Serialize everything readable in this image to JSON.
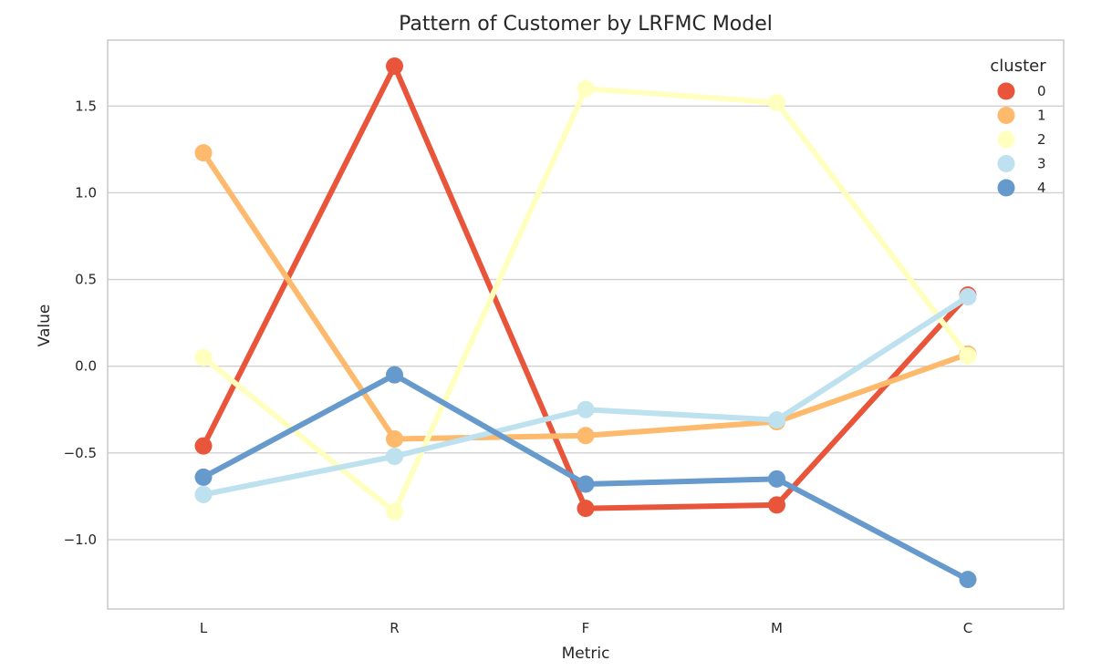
{
  "chart_data": {
    "type": "line",
    "title": "Pattern of Customer by LRFMC Model",
    "xlabel": "Metric",
    "ylabel": "Value",
    "categories": [
      "L",
      "R",
      "F",
      "M",
      "C"
    ],
    "ylim": [
      -1.4,
      1.88
    ],
    "yticks": [
      -1.0,
      -0.5,
      0.0,
      0.5,
      1.0,
      1.5
    ],
    "ytick_labels": [
      "−1.0",
      "−0.5",
      "0.0",
      "0.5",
      "1.0",
      "1.5"
    ],
    "grid": true,
    "legend": {
      "title": "cluster",
      "placement": "top-right"
    },
    "series": [
      {
        "name": "0",
        "color": "#e8553a",
        "values": [
          -0.46,
          1.73,
          -0.82,
          -0.8,
          0.41
        ]
      },
      {
        "name": "1",
        "color": "#fdb96c",
        "values": [
          1.23,
          -0.42,
          -0.4,
          -0.32,
          0.07
        ]
      },
      {
        "name": "2",
        "color": "#ffffbf",
        "values": [
          0.05,
          -0.84,
          1.6,
          1.52,
          0.06
        ]
      },
      {
        "name": "3",
        "color": "#bde1ee",
        "values": [
          -0.74,
          -0.52,
          -0.25,
          -0.31,
          0.4
        ]
      },
      {
        "name": "4",
        "color": "#6699cc",
        "values": [
          -0.64,
          -0.05,
          -0.68,
          -0.65,
          -1.23
        ]
      }
    ]
  }
}
